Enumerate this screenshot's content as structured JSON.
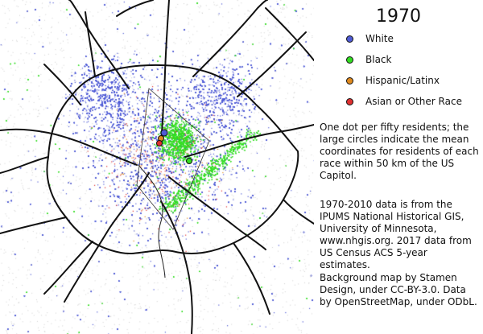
{
  "year": "1970",
  "legend": [
    {
      "label": "White",
      "color": "#4f5bd5",
      "icon": "white-circle-icon"
    },
    {
      "label": "Black",
      "color": "#33dd22",
      "icon": "black-circle-icon"
    },
    {
      "label": "Hispanic/Latinx",
      "color": "#e08a1e",
      "icon": "hispanic-circle-icon"
    },
    {
      "label": "Asian or Other Race",
      "color": "#e03030",
      "icon": "asian-circle-icon"
    }
  ],
  "notes": {
    "method": "One dot per fifty residents; the large circles indicate the mean coordinates for residents of each race within 50 km of the US Capitol.",
    "data_source": "1970-2010 data is from the IPUMS National Historical GIS, University of Minnesota, www.nhgis.org. 2017 data from US Census ACS 5-year estimates.",
    "attribution": "Background map by Stamen Design, under CC-BY-3.0. Data by OpenStreetMap, under ODbL."
  },
  "map": {
    "background": "#ffffff",
    "road_color": "#111111",
    "dot_colors": {
      "white": "#4f5bd5",
      "black": "#33dd22",
      "hispanic": "#e08a1e",
      "asian": "#e03030"
    }
  }
}
